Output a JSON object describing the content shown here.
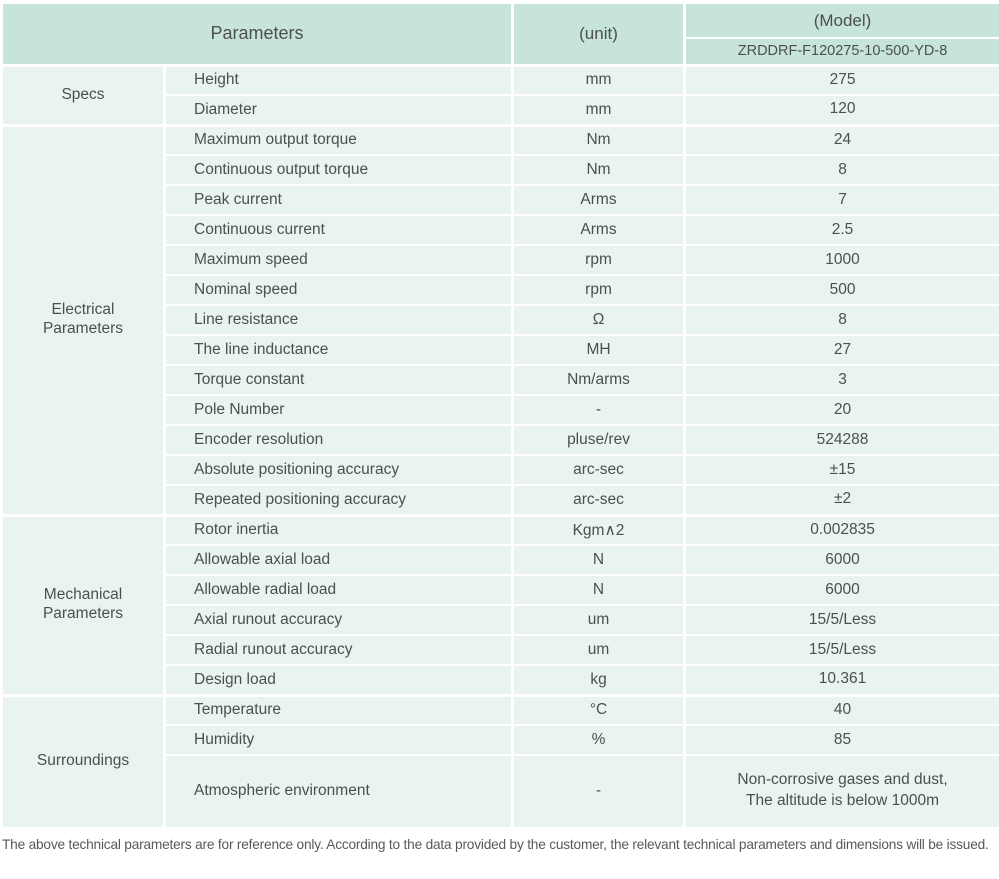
{
  "colors": {
    "header_bg": "#c7e4db",
    "row_bg": "#e9f4f1",
    "divider": "#ffffff",
    "text": "#4b4f4f"
  },
  "table": {
    "header": {
      "parameters_label": "Parameters",
      "unit_label": "(unit)",
      "model_label": "(Model)",
      "model_value": "ZRDDRF-F120275-10-500-YD-8"
    },
    "groups": [
      {
        "label": "Specs",
        "rows": [
          {
            "name": "Height",
            "unit": "mm",
            "value": "275"
          },
          {
            "name": "Diameter",
            "unit": "mm",
            "value": "120"
          }
        ]
      },
      {
        "label": "Electrical Parameters",
        "rows": [
          {
            "name": "Maximum output torque",
            "unit": "Nm",
            "value": "24"
          },
          {
            "name": "Continuous output torque",
            "unit": "Nm",
            "value": "8"
          },
          {
            "name": "Peak current",
            "unit": "Arms",
            "value": "7"
          },
          {
            "name": "Continuous current",
            "unit": "Arms",
            "value": "2.5"
          },
          {
            "name": "Maximum speed",
            "unit": "rpm",
            "value": "1000"
          },
          {
            "name": "Nominal speed",
            "unit": "rpm",
            "value": "500"
          },
          {
            "name": "Line resistance",
            "unit": "Ω",
            "value": "8"
          },
          {
            "name": "The line inductance",
            "unit": "MH",
            "value": "27"
          },
          {
            "name": "Torque constant",
            "unit": "Nm/arms",
            "value": "3"
          },
          {
            "name": "Pole Number",
            "unit": "-",
            "value": "20"
          },
          {
            "name": "Encoder resolution",
            "unit": "pluse/rev",
            "value": "524288"
          },
          {
            "name": "Absolute positioning accuracy",
            "unit": "arc-sec",
            "value": "±15"
          },
          {
            "name": "Repeated positioning accuracy",
            "unit": "arc-sec",
            "value": "±2"
          }
        ]
      },
      {
        "label": "Mechanical Parameters",
        "rows": [
          {
            "name": "Rotor inertia",
            "unit": "Kgm∧2",
            "value": "0.002835"
          },
          {
            "name": "Allowable axial load",
            "unit": "N",
            "value": "6000"
          },
          {
            "name": "Allowable radial load",
            "unit": "N",
            "value": "6000"
          },
          {
            "name": "Axial runout accuracy",
            "unit": "um",
            "value": "15/5/Less"
          },
          {
            "name": "Radial runout accuracy",
            "unit": "um",
            "value": "15/5/Less"
          },
          {
            "name": "Design load",
            "unit": "kg",
            "value": "10.361"
          }
        ]
      },
      {
        "label": "Surroundings",
        "rows": [
          {
            "name": "Temperature",
            "unit": "°C",
            "value": "40"
          },
          {
            "name": "Humidity",
            "unit": "%",
            "value": "85"
          },
          {
            "name": "Atmospheric environment",
            "unit": "-",
            "value": "Non-corrosive gases and dust,\nThe altitude is below 1000m"
          }
        ]
      }
    ]
  },
  "footer": {
    "note": "The above technical parameters are for reference only. According to the data provided by the customer, the relevant technical parameters and dimensions will be issued."
  }
}
